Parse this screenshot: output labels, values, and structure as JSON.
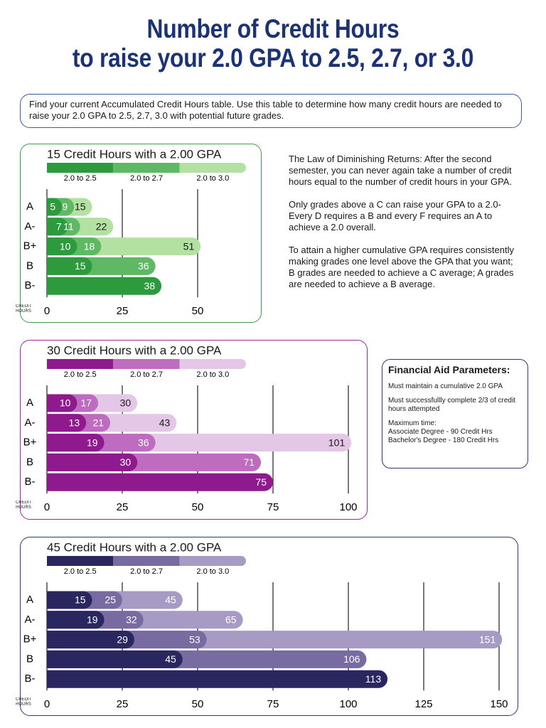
{
  "title": [
    "Number of Credit Hours",
    "to raise your 2.0 GPA to 2.5, 2.7, or 3.0"
  ],
  "intro": "Find your current Accumulated Credit Hours table. Use this table to determine how many credit hours are needed to raise your 2.0 GPA to 2.5, 2.7, 3.0 with potential future grades.",
  "notes": [
    "The Law of Diminishing Returns: After the second semester, you can never again take a number of credit hours equal to the number of credit hours in your GPA.",
    "Only grades above a C can raise your GPA to a 2.0- Every D requires a B and every F requires an A to achieve a 2.0 overall.",
    "To attain a higher cumulative GPA requires consistently making grades one level above the GPA that you want; B grades are needed to achieve a C average; A grades are needed to achieve a B average."
  ],
  "financial_aid": {
    "title": "Financial Aid Parameters:",
    "items": [
      "Must maintain a cumulative 2.0 GPA",
      "Must successfullly complete 2/3 of credit hours attempted",
      "Maximum time:",
      "Associate Degree - 90 Credit Hrs",
      "Bachelor's Degree - 180 Credit Hrs"
    ]
  },
  "chart_data": [
    {
      "type": "bar",
      "title": "15 Credit Hours with a 2.00 GPA",
      "xlabel": "CREDIT HOURS",
      "frame_color": "#3f9e4a",
      "categories": [
        "A",
        "A-",
        "B+",
        "B",
        "B-"
      ],
      "series": [
        {
          "name": "2.0 to 2.5",
          "color": "#2e9a3e",
          "values": [
            5,
            7,
            10,
            15,
            38
          ]
        },
        {
          "name": "2.0 to 2.7",
          "color": "#5fb864",
          "values": [
            9,
            11,
            18,
            36,
            null
          ]
        },
        {
          "name": "2.0 to 3.0",
          "color": "#b3e1a2",
          "values": [
            15,
            22,
            51,
            null,
            null
          ]
        }
      ],
      "xlim": [
        0,
        50
      ],
      "xticks": [
        0,
        25,
        50
      ],
      "grid": true
    },
    {
      "type": "bar",
      "title": "30 Credit Hours with a 2.00 GPA",
      "xlabel": "CREDIT HOURS",
      "frame_color": "#9b2a9b",
      "categories": [
        "A",
        "A-",
        "B+",
        "B",
        "B-"
      ],
      "series": [
        {
          "name": "2.0 to 2.5",
          "color": "#8e1a8e",
          "values": [
            10,
            13,
            19,
            30,
            75
          ]
        },
        {
          "name": "2.0 to 2.7",
          "color": "#bd6cbf",
          "values": [
            17,
            21,
            36,
            71,
            null
          ]
        },
        {
          "name": "2.0 to 3.0",
          "color": "#e4c6e7",
          "values": [
            30,
            43,
            101,
            null,
            null
          ]
        }
      ],
      "xlim": [
        0,
        100
      ],
      "xticks": [
        0,
        25,
        50,
        75,
        100
      ],
      "grid": true
    },
    {
      "type": "bar",
      "title": "45 Credit Hours with a 2.00 GPA",
      "xlabel": "CREDIT HOURS",
      "frame_color": "#2c3a7a",
      "categories": [
        "A",
        "A-",
        "B+",
        "B",
        "B-"
      ],
      "series": [
        {
          "name": "2.0 to 2.5",
          "color": "#2a2660",
          "values": [
            15,
            19,
            29,
            45,
            113
          ]
        },
        {
          "name": "2.0 to 2.7",
          "color": "#776ba2",
          "values": [
            25,
            32,
            53,
            106,
            null
          ]
        },
        {
          "name": "2.0 to 3.0",
          "color": "#a79bc5",
          "values": [
            45,
            65,
            151,
            null,
            null
          ]
        }
      ],
      "xlim": [
        0,
        150
      ],
      "xticks": [
        0,
        25,
        50,
        75,
        100,
        125,
        150
      ],
      "grid": true
    }
  ]
}
